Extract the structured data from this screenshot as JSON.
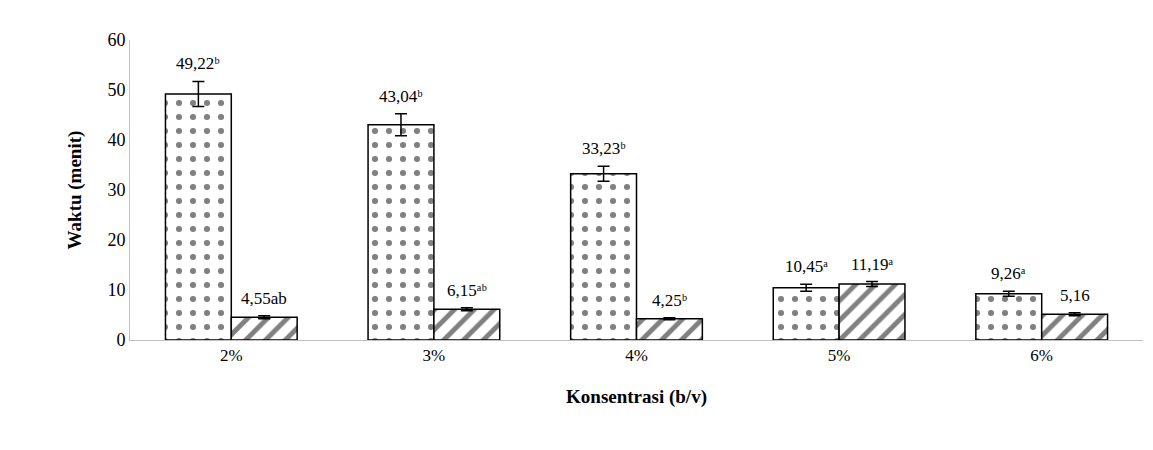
{
  "chart_data": {
    "type": "bar",
    "x_label": "Konsentrasi (b/v)",
    "y_label": "Waktu (menit)",
    "categories": [
      "2%",
      "3%",
      "4%",
      "5%",
      "6%"
    ],
    "series": [
      {
        "color": "#808080",
        "marker": "dots",
        "values": [
          49.22,
          43.04,
          33.23,
          10.45,
          9.26
        ],
        "errors": [
          2.5,
          2.2,
          1.5,
          0.7,
          0.5
        ],
        "value_labels": [
          "49,22ᵇ",
          "43,04ᵇ",
          "33,23ᵇ",
          "10,45ᵃ",
          "9,26ᵃ"
        ]
      },
      {
        "color": "#808080",
        "marker": "diagonal",
        "values": [
          4.55,
          6.15,
          4.25,
          11.19,
          5.16
        ],
        "errors": [
          0.3,
          0.3,
          0.2,
          0.5,
          0.3
        ],
        "value_labels": [
          "4,55ab",
          "6,15ᵃᵇ",
          "4,25ᵇ",
          "11,19ᵃ",
          "5,16"
        ]
      }
    ],
    "ylim": [
      0,
      60
    ],
    "yticks": [
      0,
      10,
      20,
      30,
      40,
      50,
      60
    ],
    "grid": false,
    "data_labels": true
  }
}
